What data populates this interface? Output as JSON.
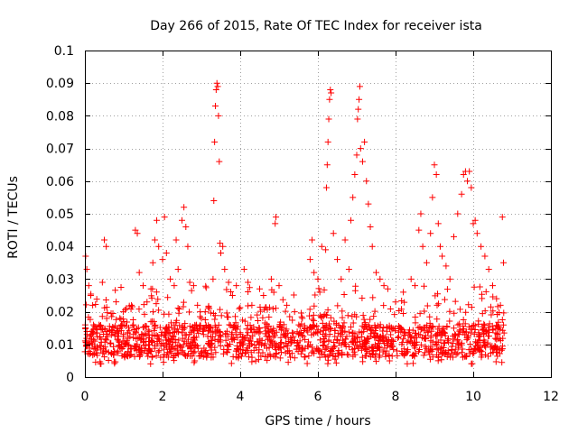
{
  "chart_data": {
    "type": "scatter",
    "title": "Day 266 of 2015, Rate Of TEC Index for receiver ista",
    "xlabel": "GPS time / hours",
    "ylabel": "ROTI / TECUs",
    "xlim": [
      0,
      12
    ],
    "ylim": [
      0,
      0.1
    ],
    "xticks": [
      0,
      2,
      4,
      6,
      8,
      10,
      12
    ],
    "yticks": [
      0,
      0.01,
      0.02,
      0.03,
      0.04,
      0.05,
      0.06,
      0.07,
      0.08,
      0.09,
      0.1
    ],
    "grid": true,
    "marker": "+",
    "color": "#ff0000",
    "series": [
      {
        "name": "ROTI",
        "points": [
          [
            0.02,
            0.037
          ],
          [
            0.05,
            0.033
          ],
          [
            0.1,
            0.028
          ],
          [
            0.15,
            0.025
          ],
          [
            0.2,
            0.022
          ],
          [
            0.45,
            0.029
          ],
          [
            0.5,
            0.042
          ],
          [
            0.55,
            0.04
          ],
          [
            0.9,
            0.018
          ],
          [
            1.0,
            0.017
          ],
          [
            1.2,
            0.022
          ],
          [
            1.3,
            0.045
          ],
          [
            1.35,
            0.044
          ],
          [
            1.4,
            0.032
          ],
          [
            1.5,
            0.028
          ],
          [
            1.6,
            0.023
          ],
          [
            1.7,
            0.027
          ],
          [
            1.75,
            0.035
          ],
          [
            1.8,
            0.042
          ],
          [
            1.85,
            0.048
          ],
          [
            1.9,
            0.04
          ],
          [
            2.0,
            0.036
          ],
          [
            2.05,
            0.049
          ],
          [
            2.1,
            0.038
          ],
          [
            2.2,
            0.03
          ],
          [
            2.3,
            0.028
          ],
          [
            2.35,
            0.042
          ],
          [
            2.4,
            0.033
          ],
          [
            2.5,
            0.048
          ],
          [
            2.55,
            0.052
          ],
          [
            2.6,
            0.046
          ],
          [
            2.65,
            0.04
          ],
          [
            2.7,
            0.029
          ],
          [
            2.8,
            0.028
          ],
          [
            2.9,
            0.022
          ],
          [
            3.0,
            0.018
          ],
          [
            3.1,
            0.02
          ],
          [
            3.2,
            0.021
          ],
          [
            3.3,
            0.03
          ],
          [
            3.32,
            0.054
          ],
          [
            3.34,
            0.072
          ],
          [
            3.36,
            0.083
          ],
          [
            3.38,
            0.088
          ],
          [
            3.4,
            0.09
          ],
          [
            3.42,
            0.089
          ],
          [
            3.44,
            0.08
          ],
          [
            3.46,
            0.066
          ],
          [
            3.48,
            0.041
          ],
          [
            3.5,
            0.038
          ],
          [
            3.55,
            0.04
          ],
          [
            3.6,
            0.033
          ],
          [
            3.7,
            0.029
          ],
          [
            3.8,
            0.025
          ],
          [
            3.9,
            0.028
          ],
          [
            4.1,
            0.033
          ],
          [
            4.2,
            0.029
          ],
          [
            4.3,
            0.022
          ],
          [
            4.5,
            0.027
          ],
          [
            4.6,
            0.025
          ],
          [
            4.8,
            0.03
          ],
          [
            4.9,
            0.047
          ],
          [
            4.92,
            0.049
          ],
          [
            5.0,
            0.028
          ],
          [
            5.2,
            0.022
          ],
          [
            5.4,
            0.02
          ],
          [
            5.6,
            0.018
          ],
          [
            5.8,
            0.036
          ],
          [
            5.85,
            0.042
          ],
          [
            5.9,
            0.032
          ],
          [
            6.0,
            0.03
          ],
          [
            6.05,
            0.026
          ],
          [
            6.1,
            0.04
          ],
          [
            6.2,
            0.039
          ],
          [
            6.22,
            0.058
          ],
          [
            6.24,
            0.065
          ],
          [
            6.26,
            0.072
          ],
          [
            6.28,
            0.079
          ],
          [
            6.3,
            0.085
          ],
          [
            6.32,
            0.088
          ],
          [
            6.34,
            0.087
          ],
          [
            6.4,
            0.044
          ],
          [
            6.5,
            0.036
          ],
          [
            6.6,
            0.03
          ],
          [
            6.7,
            0.042
          ],
          [
            6.8,
            0.033
          ],
          [
            6.85,
            0.048
          ],
          [
            6.9,
            0.055
          ],
          [
            6.95,
            0.062
          ],
          [
            7.0,
            0.068
          ],
          [
            7.02,
            0.079
          ],
          [
            7.04,
            0.082
          ],
          [
            7.06,
            0.085
          ],
          [
            7.08,
            0.089
          ],
          [
            7.1,
            0.07
          ],
          [
            7.15,
            0.066
          ],
          [
            7.2,
            0.072
          ],
          [
            7.25,
            0.06
          ],
          [
            7.3,
            0.053
          ],
          [
            7.35,
            0.046
          ],
          [
            7.4,
            0.04
          ],
          [
            7.5,
            0.032
          ],
          [
            7.6,
            0.03
          ],
          [
            7.7,
            0.028
          ],
          [
            7.8,
            0.027
          ],
          [
            8.0,
            0.023
          ],
          [
            8.2,
            0.026
          ],
          [
            8.4,
            0.03
          ],
          [
            8.5,
            0.028
          ],
          [
            8.6,
            0.045
          ],
          [
            8.65,
            0.05
          ],
          [
            8.7,
            0.04
          ],
          [
            8.8,
            0.035
          ],
          [
            8.9,
            0.044
          ],
          [
            8.95,
            0.055
          ],
          [
            9.0,
            0.065
          ],
          [
            9.05,
            0.062
          ],
          [
            9.1,
            0.047
          ],
          [
            9.15,
            0.04
          ],
          [
            9.2,
            0.037
          ],
          [
            9.3,
            0.034
          ],
          [
            9.4,
            0.03
          ],
          [
            9.5,
            0.043
          ],
          [
            9.6,
            0.05
          ],
          [
            9.7,
            0.056
          ],
          [
            9.75,
            0.062
          ],
          [
            9.8,
            0.063
          ],
          [
            9.85,
            0.06
          ],
          [
            9.9,
            0.063
          ],
          [
            9.95,
            0.058
          ],
          [
            10.0,
            0.047
          ],
          [
            10.05,
            0.048
          ],
          [
            10.1,
            0.044
          ],
          [
            10.2,
            0.04
          ],
          [
            10.3,
            0.037
          ],
          [
            10.4,
            0.033
          ],
          [
            10.5,
            0.028
          ],
          [
            10.6,
            0.024
          ],
          [
            10.7,
            0.022
          ],
          [
            10.75,
            0.049
          ],
          [
            10.78,
            0.035
          ]
        ]
      }
    ],
    "dense_band": {
      "x_range": [
        0,
        10.8
      ],
      "y_floor": 0.004,
      "y_core": [
        0.006,
        0.016
      ],
      "y_max_typical": 0.028
    }
  }
}
